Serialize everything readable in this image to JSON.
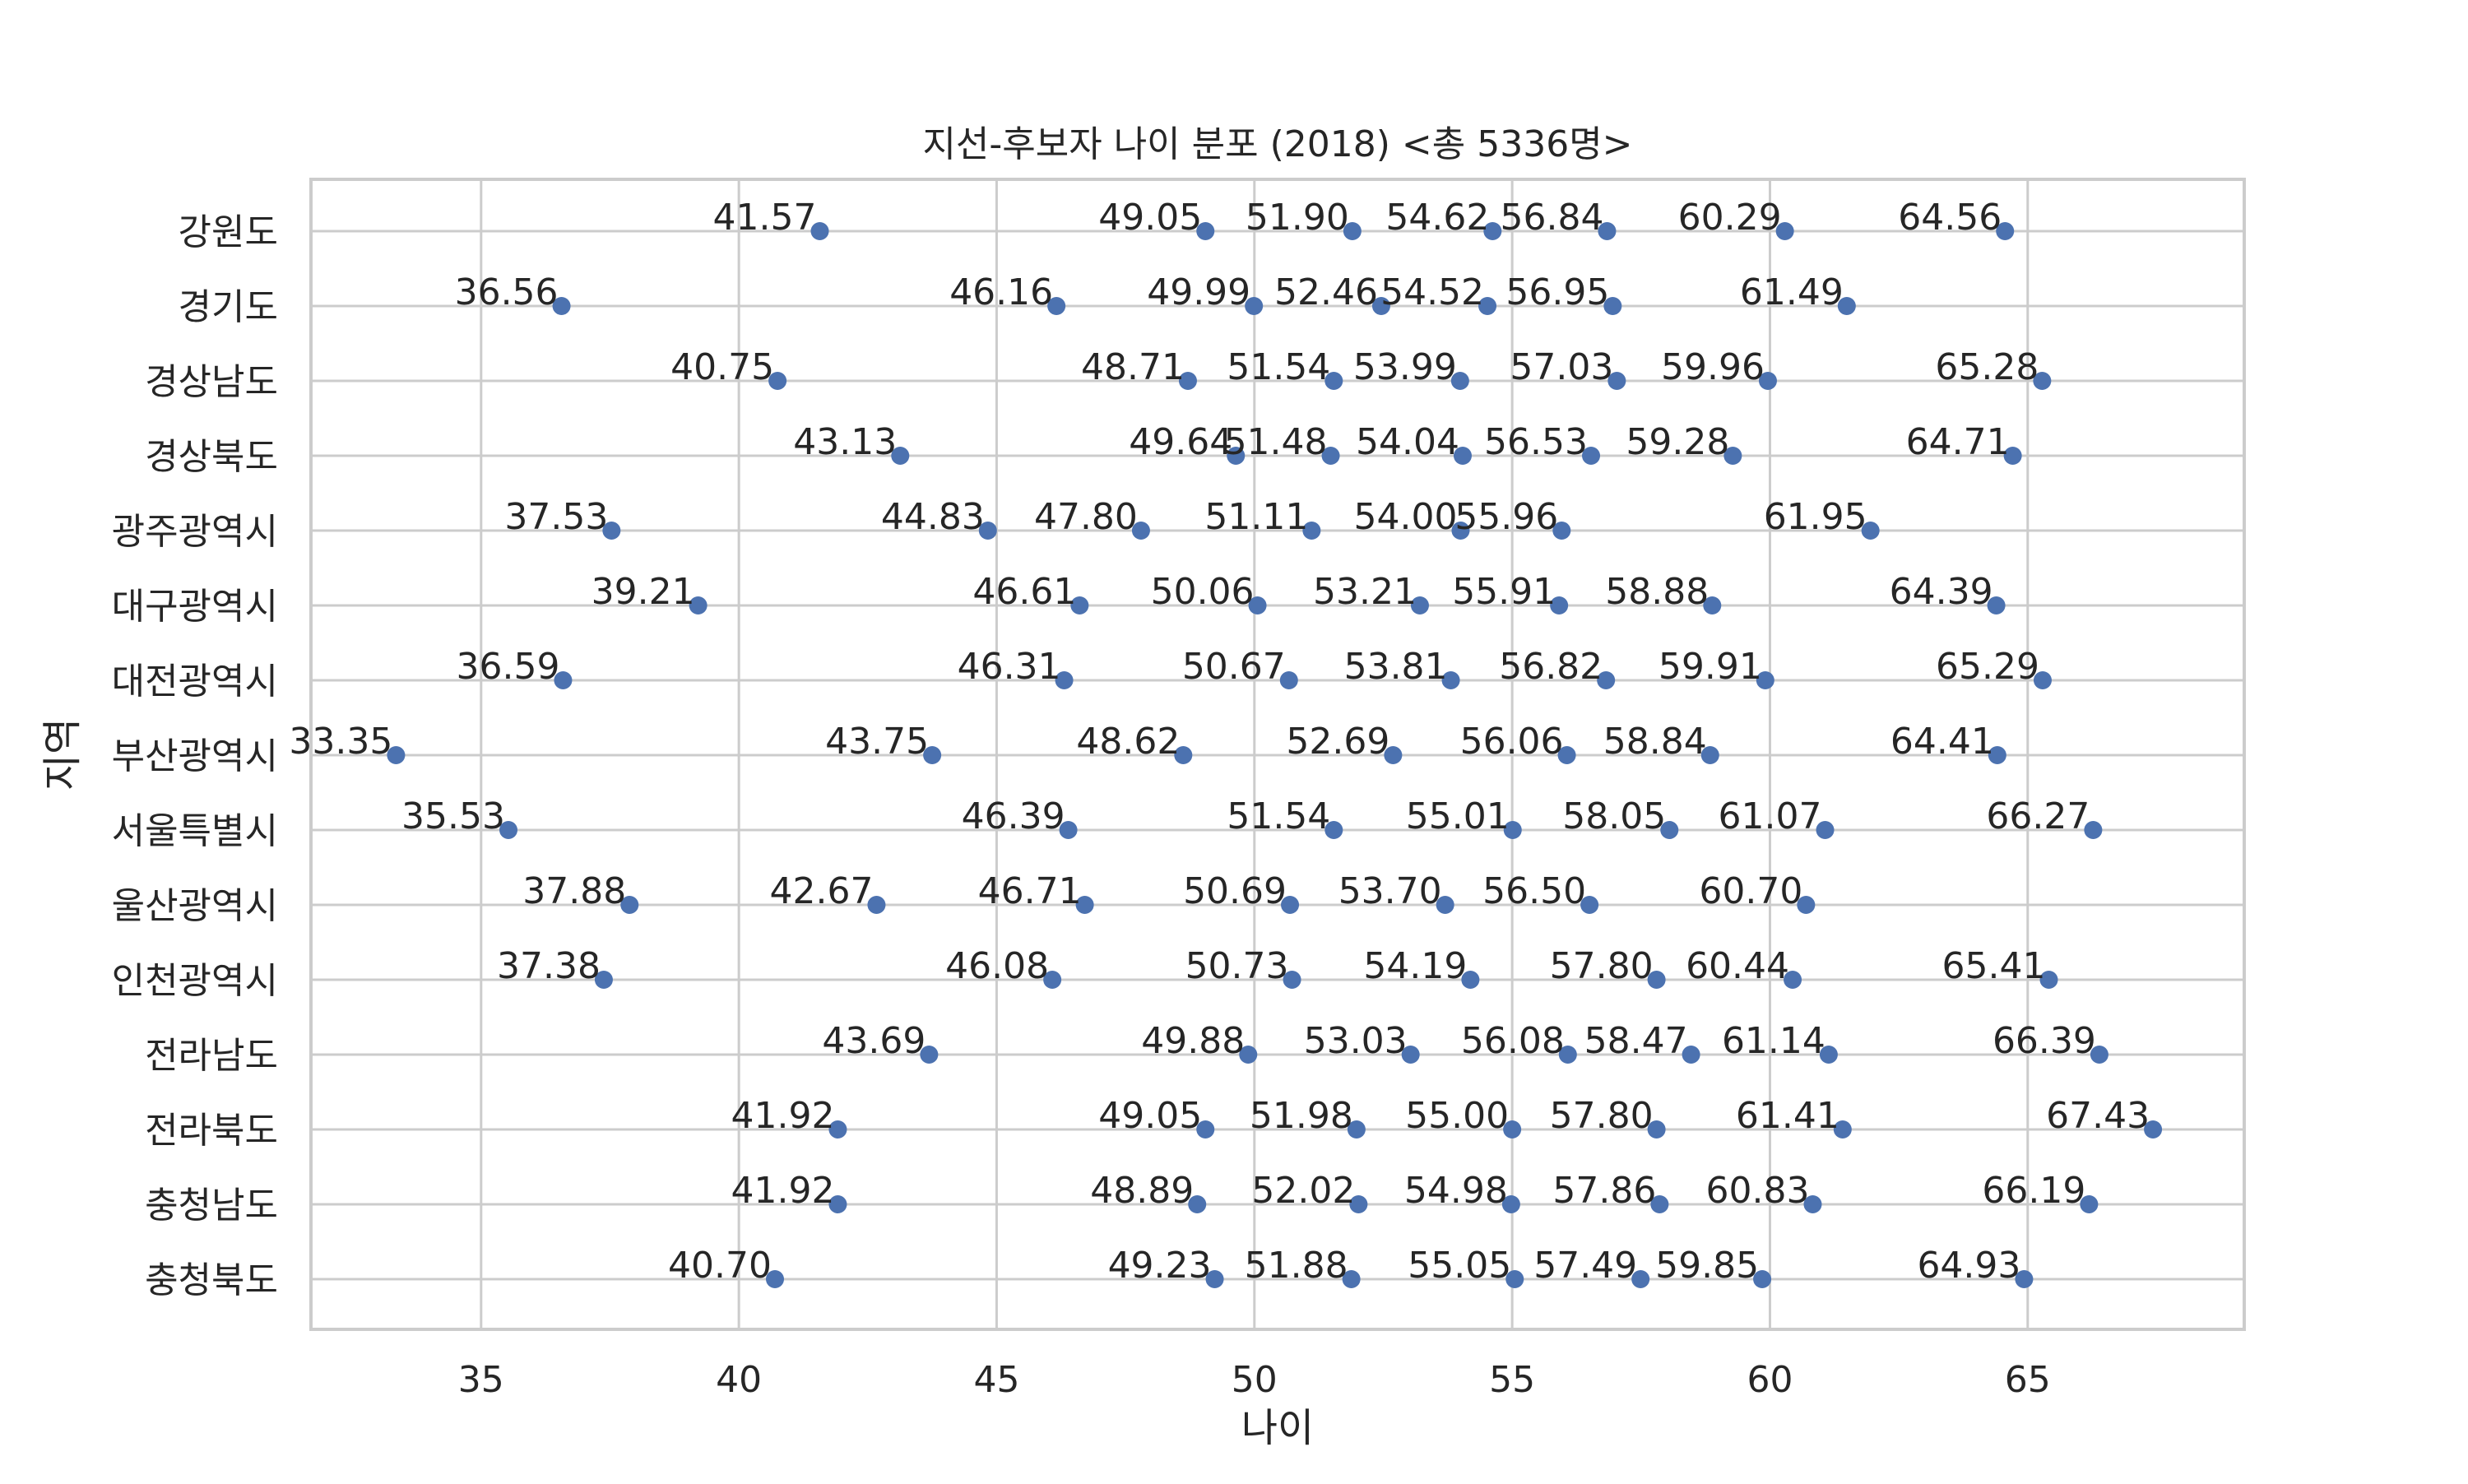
{
  "chart_data": {
    "type": "scatter",
    "title": "지선-후보자 나이 분포 (2018)  <총 5336명>",
    "xlabel": "나이",
    "ylabel": "지역",
    "xlim": [
      31.7,
      69.2
    ],
    "xticks": [
      35,
      40,
      45,
      50,
      55,
      60,
      65
    ],
    "grid": true,
    "marker_color": "#4c72b0",
    "categories": [
      "강원도",
      "경기도",
      "경상남도",
      "경상북도",
      "광주광역시",
      "대구광역시",
      "대전광역시",
      "부산광역시",
      "서울특별시",
      "울산광역시",
      "인천광역시",
      "전라남도",
      "전라북도",
      "충청남도",
      "충청북도"
    ],
    "rows": [
      {
        "region": "강원도",
        "values": [
          41.57,
          49.05,
          51.9,
          54.62,
          56.84,
          60.29,
          64.56
        ],
        "labels": [
          "41.57",
          "49.05",
          "51.90",
          "54.62",
          "56.84",
          "60.29",
          "64.56"
        ]
      },
      {
        "region": "경기도",
        "values": [
          36.56,
          46.16,
          49.99,
          52.46,
          54.52,
          56.95,
          61.49
        ],
        "labels": [
          "36.56",
          "46.16",
          "49.99",
          "52.46",
          "54.52",
          "56.95",
          "61.49"
        ]
      },
      {
        "region": "경상남도",
        "values": [
          40.75,
          48.71,
          51.54,
          53.99,
          57.03,
          59.96,
          65.28
        ],
        "labels": [
          "40.75",
          "48.71",
          "51.54",
          "53.99",
          "57.03",
          "59.96",
          "65.28"
        ]
      },
      {
        "region": "경상북도",
        "values": [
          43.13,
          49.64,
          51.48,
          54.04,
          56.53,
          59.28,
          64.71
        ],
        "labels": [
          "43.13",
          "49.64",
          "51.48",
          "54.04",
          "56.53",
          "59.28",
          "64.71"
        ]
      },
      {
        "region": "광주광역시",
        "values": [
          37.53,
          44.83,
          47.8,
          51.11,
          54.0,
          55.96,
          61.95
        ],
        "labels": [
          "37.53",
          "44.83",
          "47.80",
          "51.11",
          "54.00",
          "55.96",
          "61.95"
        ]
      },
      {
        "region": "대구광역시",
        "values": [
          39.21,
          46.61,
          50.06,
          53.21,
          55.91,
          58.88,
          64.39
        ],
        "labels": [
          "39.21",
          "46.61",
          "50.06",
          "53.21",
          "55.91",
          "58.88",
          "64.39"
        ]
      },
      {
        "region": "대전광역시",
        "values": [
          36.59,
          46.31,
          50.67,
          53.81,
          56.82,
          59.91,
          65.29
        ],
        "labels": [
          "36.59",
          "46.31",
          "50.67",
          "53.81",
          "56.82",
          "59.91",
          "65.29"
        ]
      },
      {
        "region": "부산광역시",
        "values": [
          33.35,
          43.75,
          48.62,
          52.69,
          56.06,
          58.84,
          64.41
        ],
        "labels": [
          "33.35",
          "43.75",
          "48.62",
          "52.69",
          "56.06",
          "58.84",
          "64.41"
        ]
      },
      {
        "region": "서울특별시",
        "values": [
          35.53,
          46.39,
          51.54,
          55.01,
          58.05,
          61.07,
          66.27
        ],
        "labels": [
          "35.53",
          "46.39",
          "51.54",
          "55.01",
          "58.05",
          "61.07",
          "66.27"
        ]
      },
      {
        "region": "울산광역시",
        "values": [
          37.88,
          42.67,
          46.71,
          50.69,
          53.7,
          56.5,
          60.7
        ],
        "labels": [
          "37.88",
          "42.67",
          "46.71",
          "50.69",
          "53.70",
          "56.50",
          "60.70"
        ]
      },
      {
        "region": "인천광역시",
        "values": [
          37.38,
          46.08,
          50.73,
          54.19,
          57.8,
          60.44,
          65.41
        ],
        "labels": [
          "37.38",
          "46.08",
          "50.73",
          "54.19",
          "57.80",
          "60.44",
          "65.41"
        ]
      },
      {
        "region": "전라남도",
        "values": [
          43.69,
          49.88,
          53.03,
          56.08,
          58.47,
          61.14,
          66.39
        ],
        "labels": [
          "43.69",
          "49.88",
          "53.03",
          "56.08",
          "58.47",
          "61.14",
          "66.39"
        ]
      },
      {
        "region": "전라북도",
        "values": [
          41.92,
          49.05,
          51.98,
          55.0,
          57.8,
          61.41,
          67.43
        ],
        "labels": [
          "41.92",
          "49.05",
          "51.98",
          "55.00",
          "57.80",
          "61.41",
          "67.43"
        ]
      },
      {
        "region": "충청남도",
        "values": [
          41.92,
          48.89,
          52.02,
          54.98,
          57.86,
          60.83,
          66.19
        ],
        "labels": [
          "41.92",
          "48.89",
          "52.02",
          "54.98",
          "57.86",
          "60.83",
          "66.19"
        ]
      },
      {
        "region": "충청북도",
        "values": [
          40.7,
          49.23,
          51.88,
          55.05,
          57.49,
          59.85,
          64.93
        ],
        "labels": [
          "40.70",
          "49.23",
          "51.88",
          "55.05",
          "57.49",
          "59.85",
          "64.93"
        ]
      }
    ]
  }
}
